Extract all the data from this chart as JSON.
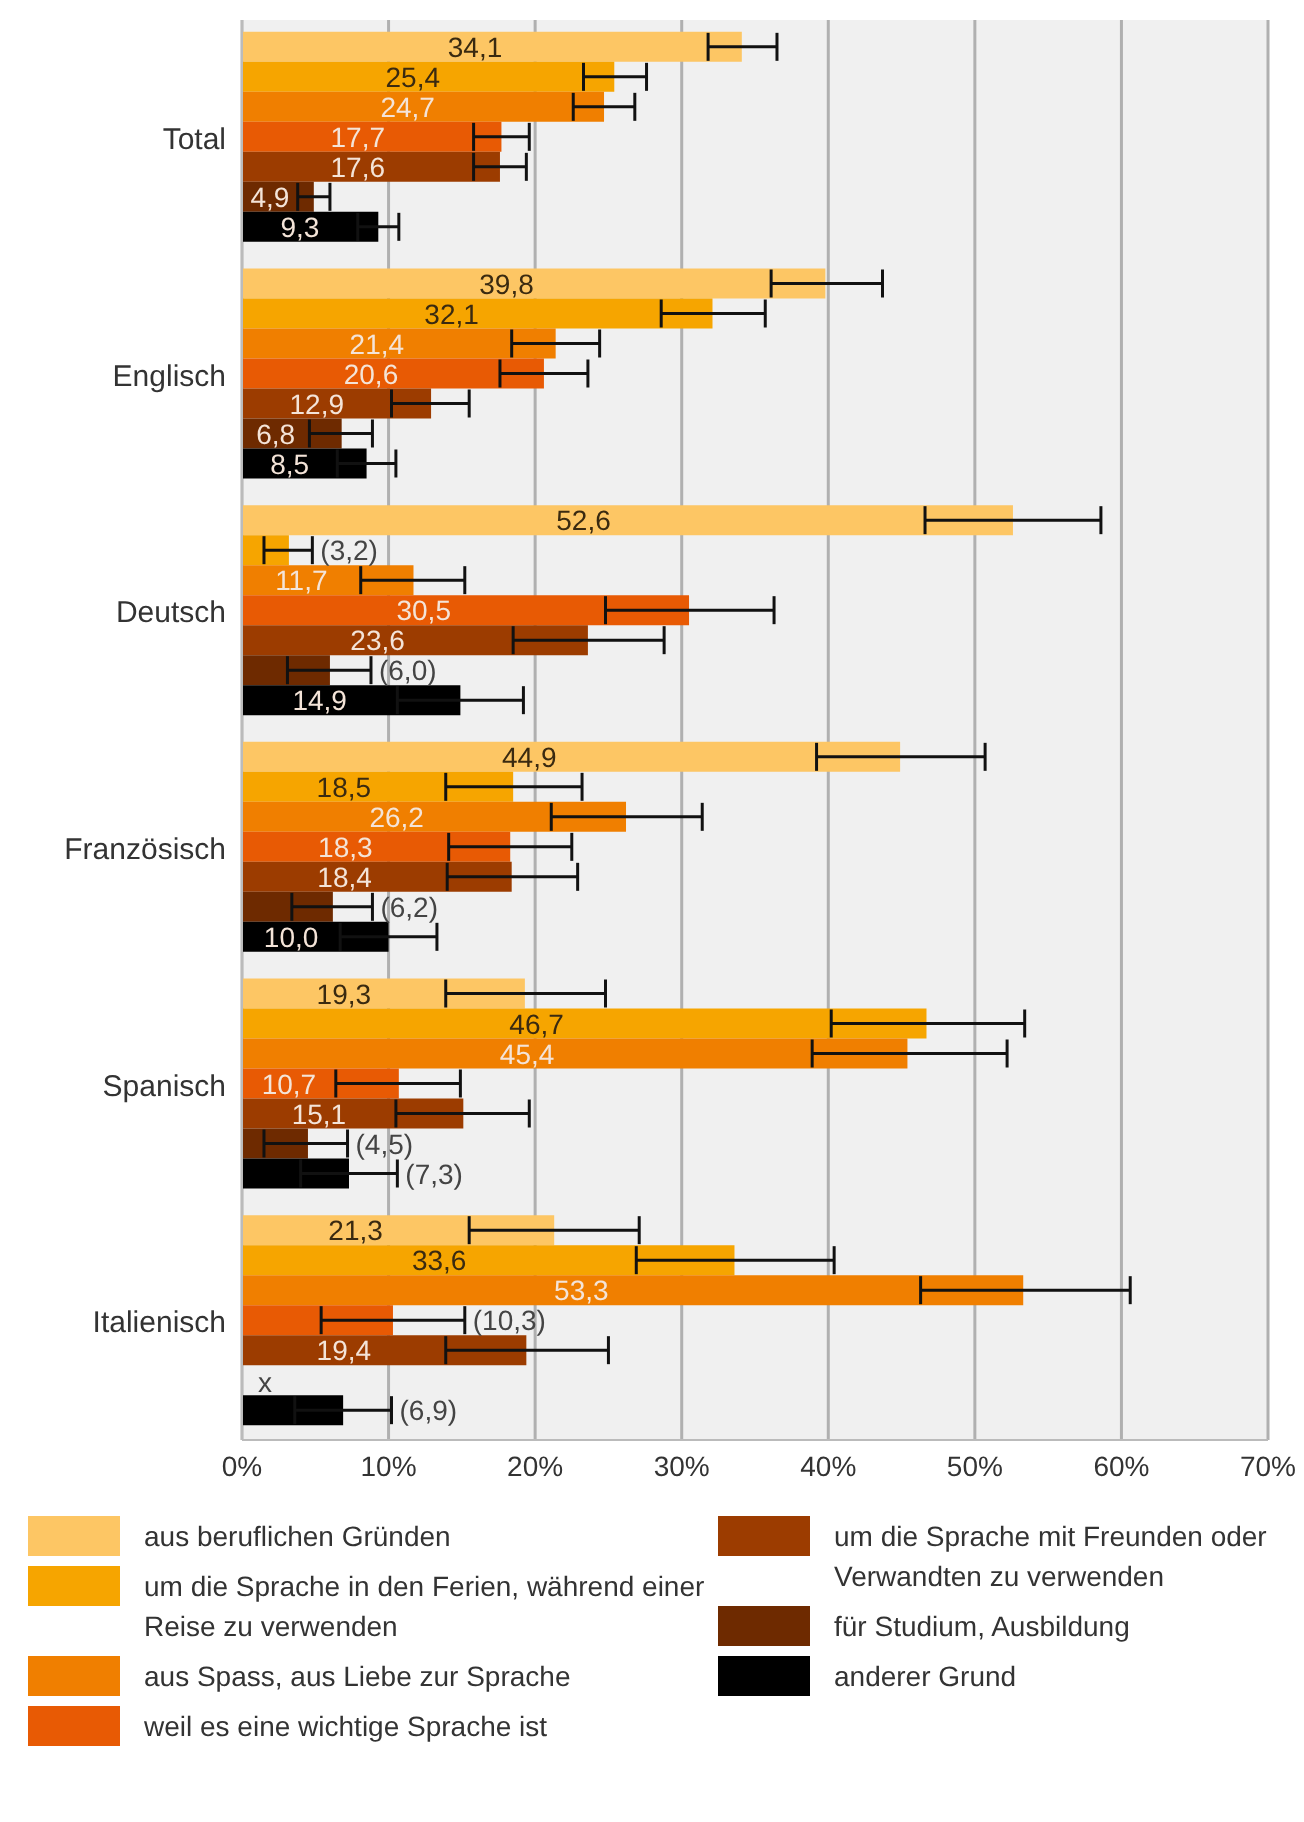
{
  "chart_data": {
    "type": "bar",
    "orientation": "horizontal",
    "categories": [
      "Total",
      "Englisch",
      "Deutsch",
      "Französisch",
      "Spanisch",
      "Italienisch"
    ],
    "series": [
      {
        "name": "aus beruflichen Gründen",
        "color": "#fdc664",
        "values": [
          34.1,
          39.8,
          52.6,
          44.9,
          19.3,
          21.3
        ],
        "value_labels": [
          "34,1",
          "39,8",
          "52,6",
          "44,9",
          "19,3",
          "21,3"
        ],
        "errors": [
          [
            31.8,
            36.5
          ],
          [
            36.1,
            43.7
          ],
          [
            46.6,
            58.6
          ],
          [
            39.2,
            50.7
          ],
          [
            13.9,
            24.8
          ],
          [
            15.5,
            27.1
          ]
        ]
      },
      {
        "name": "um die Sprache in den Ferien, während einer Reise zu verwenden",
        "color": "#f6a500",
        "values": [
          25.4,
          32.1,
          3.2,
          18.5,
          46.7,
          33.6
        ],
        "value_labels": [
          "25,4",
          "32,1",
          "(3,2)",
          "18,5",
          "46,7",
          "33,6"
        ],
        "errors": [
          [
            23.3,
            27.6
          ],
          [
            28.6,
            35.7
          ],
          [
            1.5,
            4.8
          ],
          [
            13.9,
            23.2
          ],
          [
            40.2,
            53.4
          ],
          [
            26.9,
            40.4
          ]
        ]
      },
      {
        "name": "aus Spass, aus Liebe zur Sprache",
        "color": "#f07f00",
        "values": [
          24.7,
          21.4,
          11.7,
          26.2,
          45.4,
          53.3
        ],
        "value_labels": [
          "24,7",
          "21,4",
          "11,7",
          "26,2",
          "45,4",
          "53,3"
        ],
        "errors": [
          [
            22.6,
            26.8
          ],
          [
            18.4,
            24.4
          ],
          [
            8.1,
            15.2
          ],
          [
            21.1,
            31.4
          ],
          [
            38.9,
            52.2
          ],
          [
            46.3,
            60.6
          ]
        ]
      },
      {
        "name": "weil es eine wichtige Sprache ist",
        "color": "#e85a04",
        "values": [
          17.7,
          20.6,
          30.5,
          18.3,
          10.7,
          10.3
        ],
        "value_labels": [
          "17,7",
          "20,6",
          "30,5",
          "18,3",
          "10,7",
          "(10,3)"
        ],
        "errors": [
          [
            15.8,
            19.6
          ],
          [
            17.6,
            23.6
          ],
          [
            24.8,
            36.3
          ],
          [
            14.1,
            22.5
          ],
          [
            6.4,
            14.9
          ],
          [
            5.4,
            15.2
          ]
        ]
      },
      {
        "name": "um die Sprache mit Freunden oder Verwandten zu verwenden",
        "color": "#9c3c00",
        "values": [
          17.6,
          12.9,
          23.6,
          18.4,
          15.1,
          19.4
        ],
        "value_labels": [
          "17,6",
          "12,9",
          "23,6",
          "18,4",
          "15,1",
          "19,4"
        ],
        "errors": [
          [
            15.8,
            19.4
          ],
          [
            10.2,
            15.5
          ],
          [
            18.5,
            28.8
          ],
          [
            14.0,
            22.9
          ],
          [
            10.5,
            19.6
          ],
          [
            13.9,
            25.0
          ]
        ]
      },
      {
        "name": "für Studium, Ausbildung",
        "color": "#6e2a00",
        "values": [
          4.9,
          6.8,
          6.0,
          6.2,
          4.5,
          null
        ],
        "value_labels": [
          "4,9",
          "6,8",
          "(6,0)",
          "(6,2)",
          "(4,5)",
          "x"
        ],
        "errors": [
          [
            3.8,
            6.0
          ],
          [
            4.6,
            8.9
          ],
          [
            3.1,
            8.8
          ],
          [
            3.4,
            8.9
          ],
          [
            1.5,
            7.2
          ],
          null
        ]
      },
      {
        "name": "anderer Grund",
        "color": "#000000",
        "values": [
          9.3,
          8.5,
          14.9,
          10.0,
          7.3,
          6.9
        ],
        "value_labels": [
          "9,3",
          "8,5",
          "14,9",
          "10,0",
          "(7,3)",
          "(6,9)"
        ],
        "errors": [
          [
            7.9,
            10.7
          ],
          [
            6.5,
            10.5
          ],
          [
            10.6,
            19.2
          ],
          [
            6.7,
            13.3
          ],
          [
            4.0,
            10.6
          ],
          [
            3.6,
            10.2
          ]
        ]
      }
    ],
    "xlim": [
      0,
      70
    ],
    "xticks": [
      {
        "value": 0,
        "label": "0%"
      },
      {
        "value": 10,
        "label": "10%"
      },
      {
        "value": 20,
        "label": "20%"
      },
      {
        "value": 30,
        "label": "30%"
      },
      {
        "value": 40,
        "label": "40%"
      },
      {
        "value": 50,
        "label": "50%"
      },
      {
        "value": 60,
        "label": "60%"
      },
      {
        "value": 70,
        "label": "70%"
      }
    ],
    "grid": "x",
    "legend": "bottom"
  }
}
